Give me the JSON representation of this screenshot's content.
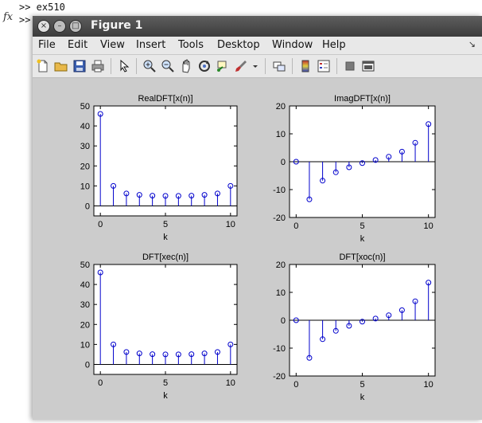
{
  "console": {
    "line1": ">>  ex510",
    "line2": ">>",
    "fx_label": "fx"
  },
  "window": {
    "title": "Figure 1",
    "buttons": {
      "close": "×",
      "minimize": "–",
      "maximize": "□"
    }
  },
  "menu": [
    "File",
    "Edit",
    "View",
    "Insert",
    "Tools",
    "Desktop",
    "Window",
    "Help"
  ],
  "menu_arrow": "↘",
  "toolbar": [
    "new-figure-icon",
    "open-icon",
    "save-icon",
    "print-icon",
    "pointer-icon",
    "zoom-in-icon",
    "zoom-out-icon",
    "pan-icon",
    "rotate-icon",
    "data-cursor-icon",
    "brush-icon",
    "link-icon",
    "colorbar-icon",
    "legend-icon",
    "hide-plot-tools-icon",
    "show-plot-tools-icon"
  ],
  "colors": {
    "stem": "#0000cc",
    "axes_bg": "#ffffff",
    "figure_bg": "#cccccc"
  },
  "chart_data": [
    {
      "type": "stem",
      "title": "RealDFT[x(n)]",
      "xlabel": "k",
      "ylabel": "",
      "x": [
        0,
        1,
        2,
        3,
        4,
        5,
        6,
        7,
        8,
        9,
        10
      ],
      "values": [
        46,
        10,
        6.2,
        5.5,
        5.1,
        5.0,
        5.0,
        5.1,
        5.5,
        6.2,
        10
      ],
      "xlim": [
        -0.5,
        10.5
      ],
      "ylim": [
        -5,
        50
      ],
      "xticks": [
        0,
        5,
        10
      ],
      "yticks": [
        0,
        10,
        20,
        30,
        40,
        50
      ]
    },
    {
      "type": "stem",
      "title": "ImagDFT[x(n)]",
      "xlabel": "k",
      "ylabel": "",
      "x": [
        0,
        1,
        2,
        3,
        4,
        5,
        6,
        7,
        8,
        9,
        10
      ],
      "values": [
        0,
        -13.5,
        -6.8,
        -3.8,
        -2.0,
        -0.5,
        0.6,
        1.8,
        3.6,
        6.8,
        13.5
      ],
      "xlim": [
        -0.5,
        10.5
      ],
      "ylim": [
        -20,
        20
      ],
      "xticks": [
        0,
        5,
        10
      ],
      "yticks": [
        -20,
        -10,
        0,
        10,
        20
      ]
    },
    {
      "type": "stem",
      "title": "DFT[xec(n)]",
      "xlabel": "k",
      "ylabel": "",
      "x": [
        0,
        1,
        2,
        3,
        4,
        5,
        6,
        7,
        8,
        9,
        10
      ],
      "values": [
        46,
        10,
        6.2,
        5.5,
        5.1,
        5.0,
        5.0,
        5.1,
        5.5,
        6.2,
        10
      ],
      "xlim": [
        -0.5,
        10.5
      ],
      "ylim": [
        -5,
        50
      ],
      "xticks": [
        0,
        5,
        10
      ],
      "yticks": [
        0,
        10,
        20,
        30,
        40,
        50
      ]
    },
    {
      "type": "stem",
      "title": "DFT[xoc(n)]",
      "xlabel": "k",
      "ylabel": "",
      "x": [
        0,
        1,
        2,
        3,
        4,
        5,
        6,
        7,
        8,
        9,
        10
      ],
      "values": [
        0,
        -13.5,
        -6.8,
        -3.8,
        -2.0,
        -0.5,
        0.6,
        1.8,
        3.6,
        6.8,
        13.5
      ],
      "xlim": [
        -0.5,
        10.5
      ],
      "ylim": [
        -20,
        20
      ],
      "xticks": [
        0,
        5,
        10
      ],
      "yticks": [
        -20,
        -10,
        0,
        10,
        20
      ]
    }
  ]
}
